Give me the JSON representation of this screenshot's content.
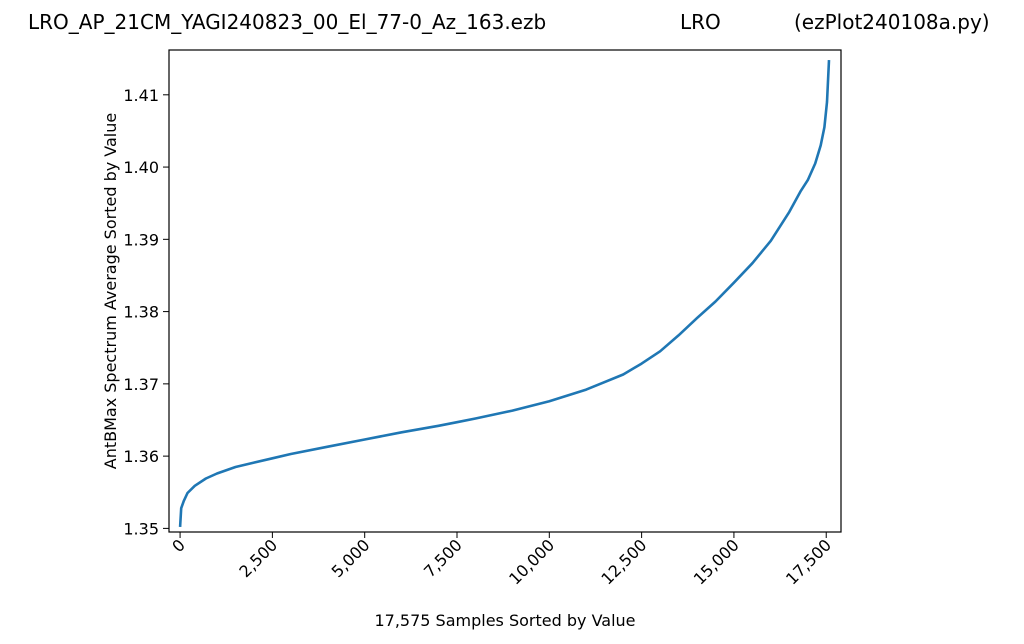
{
  "header": {
    "file_title": "LRO_AP_21CM_YAGI240823_00_El_77-0_Az_163.ezb",
    "site": "LRO",
    "program": "(ezPlot240108a.py)"
  },
  "chart_data": {
    "type": "line",
    "title": "",
    "xlabel": "17,575 Samples Sorted by Value",
    "ylabel": "AntBMax Spectrum Average Sorted by Value",
    "xlim": [
      -300,
      17900
    ],
    "ylim": [
      1.3495,
      1.4162
    ],
    "x_ticks": [
      0,
      2500,
      5000,
      7500,
      10000,
      12500,
      15000,
      17500
    ],
    "x_tick_labels": [
      "0",
      "2,500",
      "5,000",
      "7,500",
      "10,000",
      "12,500",
      "15,000",
      "17,500"
    ],
    "y_ticks": [
      1.35,
      1.36,
      1.37,
      1.38,
      1.39,
      1.4,
      1.41
    ],
    "y_tick_labels": [
      "1.35",
      "1.36",
      "1.37",
      "1.38",
      "1.39",
      "1.40",
      "1.41"
    ],
    "grid": false,
    "series_color": "#1f77b4",
    "series": [
      {
        "x": [
          0,
          30,
          100,
          200,
          400,
          700,
          1000,
          1500,
          2000,
          2500,
          3000,
          4000,
          5000,
          6000,
          7000,
          7500,
          8000,
          9000,
          10000,
          11000,
          12000,
          12500,
          13000,
          13500,
          14000,
          14500,
          15000,
          15500,
          16000,
          16500,
          16800,
          17000,
          17200,
          17350,
          17450,
          17520,
          17574
        ],
        "y": [
          1.3502,
          1.3528,
          1.3538,
          1.3549,
          1.3559,
          1.3569,
          1.3576,
          1.3585,
          1.3591,
          1.3597,
          1.3603,
          1.3613,
          1.3623,
          1.3633,
          1.3642,
          1.3647,
          1.3652,
          1.3663,
          1.3676,
          1.3692,
          1.3713,
          1.3728,
          1.3745,
          1.3767,
          1.3791,
          1.3814,
          1.384,
          1.3867,
          1.3898,
          1.3938,
          1.3966,
          1.3982,
          1.4005,
          1.403,
          1.4055,
          1.409,
          1.4148
        ]
      }
    ]
  }
}
